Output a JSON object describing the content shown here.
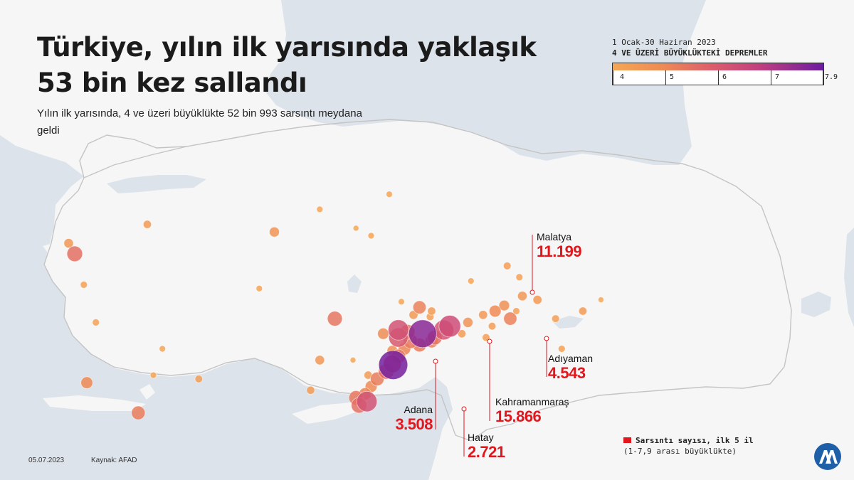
{
  "header": {
    "title": "Türkiye, yılın ilk yarısında yaklaşık 53 bin kez sallandı",
    "subtitle": "Yılın ilk yarısında, 4 ve üzeri büyüklükte 52 bin 993 sarsıntı meydana geldi"
  },
  "legend": {
    "period": "1 Ocak-30 Haziran 2023",
    "title": "4 VE ÜZERİ BÜYÜKLÜKTEKİ DEPREMLER",
    "ticks": [
      "4",
      "5",
      "6",
      "7",
      "7.9"
    ]
  },
  "cities": [
    {
      "name": "Malatya",
      "count": "11.199"
    },
    {
      "name": "Adıyaman",
      "count": "4.543"
    },
    {
      "name": "Kahramanmaraş",
      "count": "15.866"
    },
    {
      "name": "Adana",
      "count": "3.508"
    },
    {
      "name": "Hatay",
      "count": "2.721"
    }
  ],
  "note": {
    "line1": "Sarsıntı sayısı,  ilk 5 il",
    "line2": "(1-7,9 arası büyüklükte)"
  },
  "footer": {
    "date": "05.07.2023",
    "source": "Kaynak: AFAD"
  },
  "colors": {
    "mag4": "#f5a755",
    "mag5": "#ee8a55",
    "mag6": "#dd5f6c",
    "mag7": "#c0407f",
    "mag79": "#6c1ba0",
    "accent": "#e2161d",
    "sea": "#dde3ea",
    "land": "#f6f6f6",
    "logo": "#1f5fa8"
  },
  "logo": {
    "icon": "aa-logo-icon"
  },
  "map_points": [
    {
      "lat": 40.4,
      "lon": 26.3,
      "mag": 4.6
    },
    {
      "lat": 40.12,
      "lon": 26.5,
      "mag": 5.6
    },
    {
      "lat": 40.9,
      "lon": 28.9,
      "mag": 4.4
    },
    {
      "lat": 39.3,
      "lon": 26.8,
      "mag": 4.2
    },
    {
      "lat": 38.3,
      "lon": 27.2,
      "mag": 4.2
    },
    {
      "lat": 36.7,
      "lon": 26.9,
      "mag": 5.0
    },
    {
      "lat": 35.9,
      "lon": 28.6,
      "mag": 5.3
    },
    {
      "lat": 36.9,
      "lon": 29.1,
      "mag": 4.1
    },
    {
      "lat": 36.8,
      "lon": 30.6,
      "mag": 4.3
    },
    {
      "lat": 37.6,
      "lon": 29.4,
      "mag": 4.1
    },
    {
      "lat": 39.2,
      "lon": 32.6,
      "mag": 4.1
    },
    {
      "lat": 40.7,
      "lon": 33.1,
      "mag": 4.7
    },
    {
      "lat": 41.3,
      "lon": 34.6,
      "mag": 4.1
    },
    {
      "lat": 40.8,
      "lon": 35.8,
      "mag": 4.0
    },
    {
      "lat": 40.6,
      "lon": 36.3,
      "mag": 4.1
    },
    {
      "lat": 41.7,
      "lon": 36.9,
      "mag": 4.1
    },
    {
      "lat": 38.4,
      "lon": 35.1,
      "mag": 5.5
    },
    {
      "lat": 37.3,
      "lon": 34.6,
      "mag": 4.6
    },
    {
      "lat": 38.0,
      "lon": 36.7,
      "mag": 4.9
    },
    {
      "lat": 36.5,
      "lon": 34.3,
      "mag": 4.4
    },
    {
      "lat": 38.1,
      "lon": 37.2,
      "mag": 6.4
    },
    {
      "lat": 37.9,
      "lon": 37.2,
      "mag": 6.2
    },
    {
      "lat": 38.05,
      "lon": 37.5,
      "mag": 5.5
    },
    {
      "lat": 37.8,
      "lon": 37.6,
      "mag": 5.4
    },
    {
      "lat": 38.0,
      "lon": 38.0,
      "mag": 7.6
    },
    {
      "lat": 37.9,
      "lon": 38.4,
      "mag": 5.5
    },
    {
      "lat": 38.1,
      "lon": 38.7,
      "mag": 6.3
    },
    {
      "lat": 38.2,
      "lon": 38.9,
      "mag": 6.6
    },
    {
      "lat": 37.8,
      "lon": 38.3,
      "mag": 5.2
    },
    {
      "lat": 37.7,
      "lon": 37.9,
      "mag": 5.3
    },
    {
      "lat": 37.6,
      "lon": 37.4,
      "mag": 5.1
    },
    {
      "lat": 37.55,
      "lon": 37.0,
      "mag": 4.8
    },
    {
      "lat": 37.4,
      "lon": 37.2,
      "mag": 5.4
    },
    {
      "lat": 37.2,
      "lon": 37.0,
      "mag": 6.0
    },
    {
      "lat": 37.17,
      "lon": 37.03,
      "mag": 7.8
    },
    {
      "lat": 37.0,
      "lon": 36.8,
      "mag": 5.6
    },
    {
      "lat": 36.8,
      "lon": 36.5,
      "mag": 5.3
    },
    {
      "lat": 36.6,
      "lon": 36.3,
      "mag": 5.0
    },
    {
      "lat": 36.4,
      "lon": 36.1,
      "mag": 5.1
    },
    {
      "lat": 36.2,
      "lon": 36.16,
      "mag": 6.4
    },
    {
      "lat": 36.1,
      "lon": 35.9,
      "mag": 5.6
    },
    {
      "lat": 36.3,
      "lon": 35.8,
      "mag": 5.4
    },
    {
      "lat": 36.9,
      "lon": 36.2,
      "mag": 4.4
    },
    {
      "lat": 37.3,
      "lon": 35.7,
      "mag": 4.0
    },
    {
      "lat": 38.7,
      "lon": 37.9,
      "mag": 5.2
    },
    {
      "lat": 38.5,
      "lon": 37.7,
      "mag": 4.5
    },
    {
      "lat": 38.6,
      "lon": 38.3,
      "mag": 4.4
    },
    {
      "lat": 38.45,
      "lon": 38.25,
      "mag": 4.3
    },
    {
      "lat": 38.3,
      "lon": 39.5,
      "mag": 4.7
    },
    {
      "lat": 38.5,
      "lon": 40.0,
      "mag": 4.5
    },
    {
      "lat": 38.6,
      "lon": 40.4,
      "mag": 5.0
    },
    {
      "lat": 38.75,
      "lon": 40.7,
      "mag": 4.8
    },
    {
      "lat": 38.4,
      "lon": 40.9,
      "mag": 5.2
    },
    {
      "lat": 38.2,
      "lon": 40.3,
      "mag": 4.3
    },
    {
      "lat": 38.6,
      "lon": 41.1,
      "mag": 4.2
    },
    {
      "lat": 39.0,
      "lon": 41.3,
      "mag": 4.6
    },
    {
      "lat": 38.9,
      "lon": 41.8,
      "mag": 4.5
    },
    {
      "lat": 39.5,
      "lon": 41.2,
      "mag": 4.2
    },
    {
      "lat": 39.8,
      "lon": 40.8,
      "mag": 4.3
    },
    {
      "lat": 39.4,
      "lon": 39.6,
      "mag": 4.1
    },
    {
      "lat": 38.0,
      "lon": 39.3,
      "mag": 4.4
    },
    {
      "lat": 37.9,
      "lon": 40.1,
      "mag": 4.3
    },
    {
      "lat": 38.4,
      "lon": 42.4,
      "mag": 4.3
    },
    {
      "lat": 38.6,
      "lon": 43.3,
      "mag": 4.4
    },
    {
      "lat": 37.6,
      "lon": 42.6,
      "mag": 4.2
    },
    {
      "lat": 38.9,
      "lon": 43.9,
      "mag": 4.0
    },
    {
      "lat": 38.85,
      "lon": 37.3,
      "mag": 4.1
    }
  ]
}
